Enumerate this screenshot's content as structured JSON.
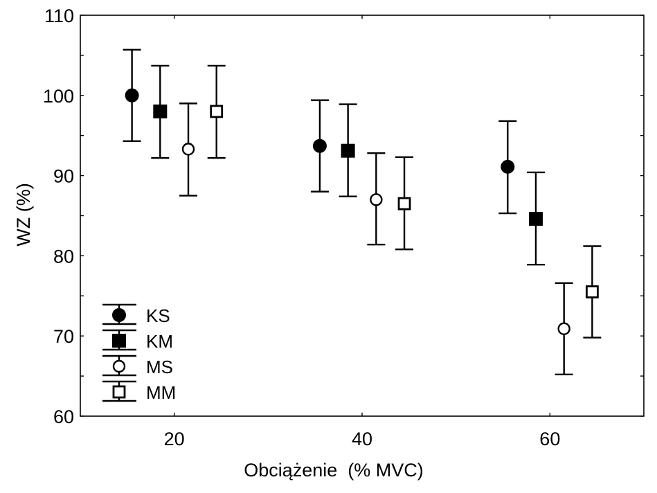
{
  "chart_data": {
    "type": "scatter",
    "subtype": "error-bar",
    "title": "",
    "xlabel": "Obciążenie  (% MVC)",
    "ylabel": "WZ (%)",
    "xlim": [
      10,
      70
    ],
    "ylim": [
      60,
      110
    ],
    "x_ticks": [
      20,
      40,
      60
    ],
    "x_tick_labels": [
      "20",
      "40",
      "60"
    ],
    "y_ticks": [
      60,
      70,
      80,
      90,
      100,
      110
    ],
    "y_tick_labels": [
      "60",
      "70",
      "80",
      "90",
      "100",
      "110"
    ],
    "y_minor_step": 5,
    "grid": false,
    "legend_position": "bottom-left",
    "categories": [
      20,
      40,
      60
    ],
    "series": [
      {
        "name": "KS",
        "marker": "circle",
        "fill": "#000000",
        "x": [
          15.5,
          35.5,
          55.5
        ],
        "y": [
          100.0,
          93.7,
          91.1
        ],
        "err_low": [
          94.3,
          88.0,
          85.3
        ],
        "err_high": [
          105.7,
          99.4,
          96.8
        ]
      },
      {
        "name": "KM",
        "marker": "square",
        "fill": "#000000",
        "x": [
          18.5,
          38.5,
          58.5
        ],
        "y": [
          98.0,
          93.1,
          84.6
        ],
        "err_low": [
          92.2,
          87.4,
          78.9
        ],
        "err_high": [
          103.7,
          98.9,
          90.4
        ]
      },
      {
        "name": "MS",
        "marker": "circle",
        "fill": "#ffffff",
        "x": [
          21.5,
          41.5,
          61.5
        ],
        "y": [
          93.3,
          87.0,
          70.9
        ],
        "err_low": [
          87.5,
          81.4,
          65.2
        ],
        "err_high": [
          99.0,
          92.8,
          76.6
        ]
      },
      {
        "name": "MM",
        "marker": "square",
        "fill": "#ffffff",
        "x": [
          24.5,
          44.5,
          64.5
        ],
        "y": [
          98.0,
          86.5,
          75.5
        ],
        "err_low": [
          92.2,
          80.8,
          69.8
        ],
        "err_high": [
          103.7,
          92.3,
          81.2
        ]
      }
    ]
  }
}
